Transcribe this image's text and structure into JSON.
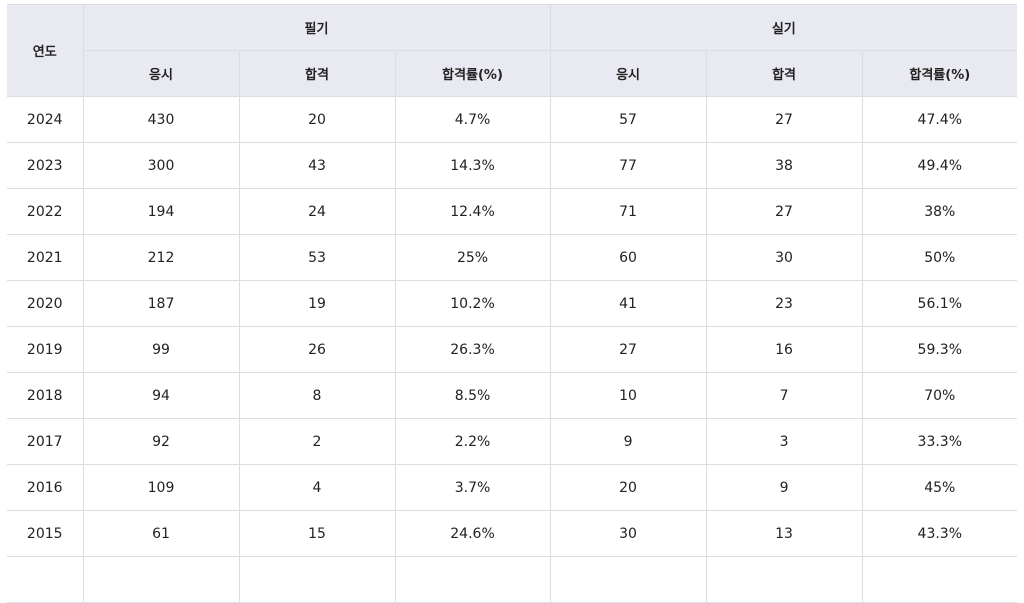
{
  "table": {
    "header": {
      "year": "연도",
      "groups": [
        "필기",
        "실기"
      ],
      "columns": [
        "응시",
        "합격",
        "합격률(%)",
        "응시",
        "합격",
        "합격률(%)"
      ]
    },
    "rows": [
      [
        "2024",
        "430",
        "20",
        "4.7%",
        "57",
        "27",
        "47.4%"
      ],
      [
        "2023",
        "300",
        "43",
        "14.3%",
        "77",
        "38",
        "49.4%"
      ],
      [
        "2022",
        "194",
        "24",
        "12.4%",
        "71",
        "27",
        "38%"
      ],
      [
        "2021",
        "212",
        "53",
        "25%",
        "60",
        "30",
        "50%"
      ],
      [
        "2020",
        "187",
        "19",
        "10.2%",
        "41",
        "23",
        "56.1%"
      ],
      [
        "2019",
        "99",
        "26",
        "26.3%",
        "27",
        "16",
        "59.3%"
      ],
      [
        "2018",
        "94",
        "8",
        "8.5%",
        "10",
        "7",
        "70%"
      ],
      [
        "2017",
        "92",
        "2",
        "2.2%",
        "9",
        "3",
        "33.3%"
      ],
      [
        "2016",
        "109",
        "4",
        "3.7%",
        "20",
        "9",
        "45%"
      ],
      [
        "2015",
        "61",
        "15",
        "24.6%",
        "30",
        "13",
        "43.3%"
      ]
    ]
  }
}
